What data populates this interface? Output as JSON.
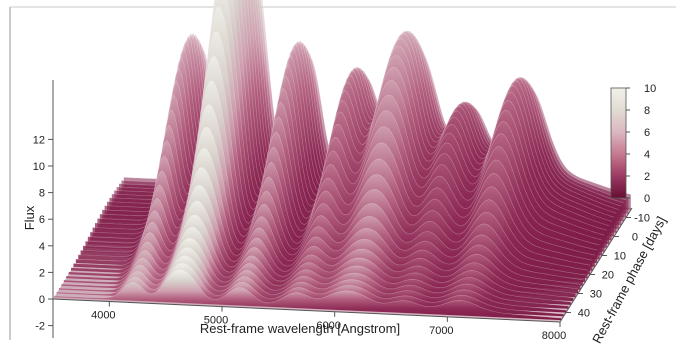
{
  "chart_data": {
    "type": "surface",
    "title": "",
    "xlabel": "Rest-frame wavelength [Angstrom]",
    "ylabel": "Rest-frame phase [days]",
    "zlabel": "Flux",
    "x_ticks": [
      4000,
      5000,
      6000,
      7000,
      8000
    ],
    "y_ticks": [
      -10,
      0,
      10,
      20,
      30,
      40
    ],
    "z_ticks": [
      -2,
      0,
      2,
      4,
      6,
      8,
      10,
      12
    ],
    "xlim": [
      3500,
      8000
    ],
    "ylim": [
      -15,
      45
    ],
    "zlim": [
      -2,
      12
    ],
    "colorbar": {
      "ticks": [
        0,
        2,
        4,
        6,
        8,
        10
      ],
      "range": [
        0,
        10
      ],
      "colors": [
        "#650e33",
        "#9c3a63",
        "#c7798f",
        "#dbb7c1",
        "#e1dcd2",
        "#f2f2e9"
      ]
    },
    "grid": false,
    "spectral_peaks": [
      {
        "wavelength": 4200,
        "flux": 12.4
      },
      {
        "wavelength": 4550,
        "flux": 15.8
      },
      {
        "wavelength": 4700,
        "flux": 15.4
      },
      {
        "wavelength": 5150,
        "flux": 12.2
      },
      {
        "wavelength": 5650,
        "flux": 10.2
      },
      {
        "wavelength": 6000,
        "flux": 8.6
      },
      {
        "wavelength": 6200,
        "flux": 9.5
      },
      {
        "wavelength": 6600,
        "flux": 7.4
      },
      {
        "wavelength": 7100,
        "flux": 8.2
      }
    ]
  }
}
